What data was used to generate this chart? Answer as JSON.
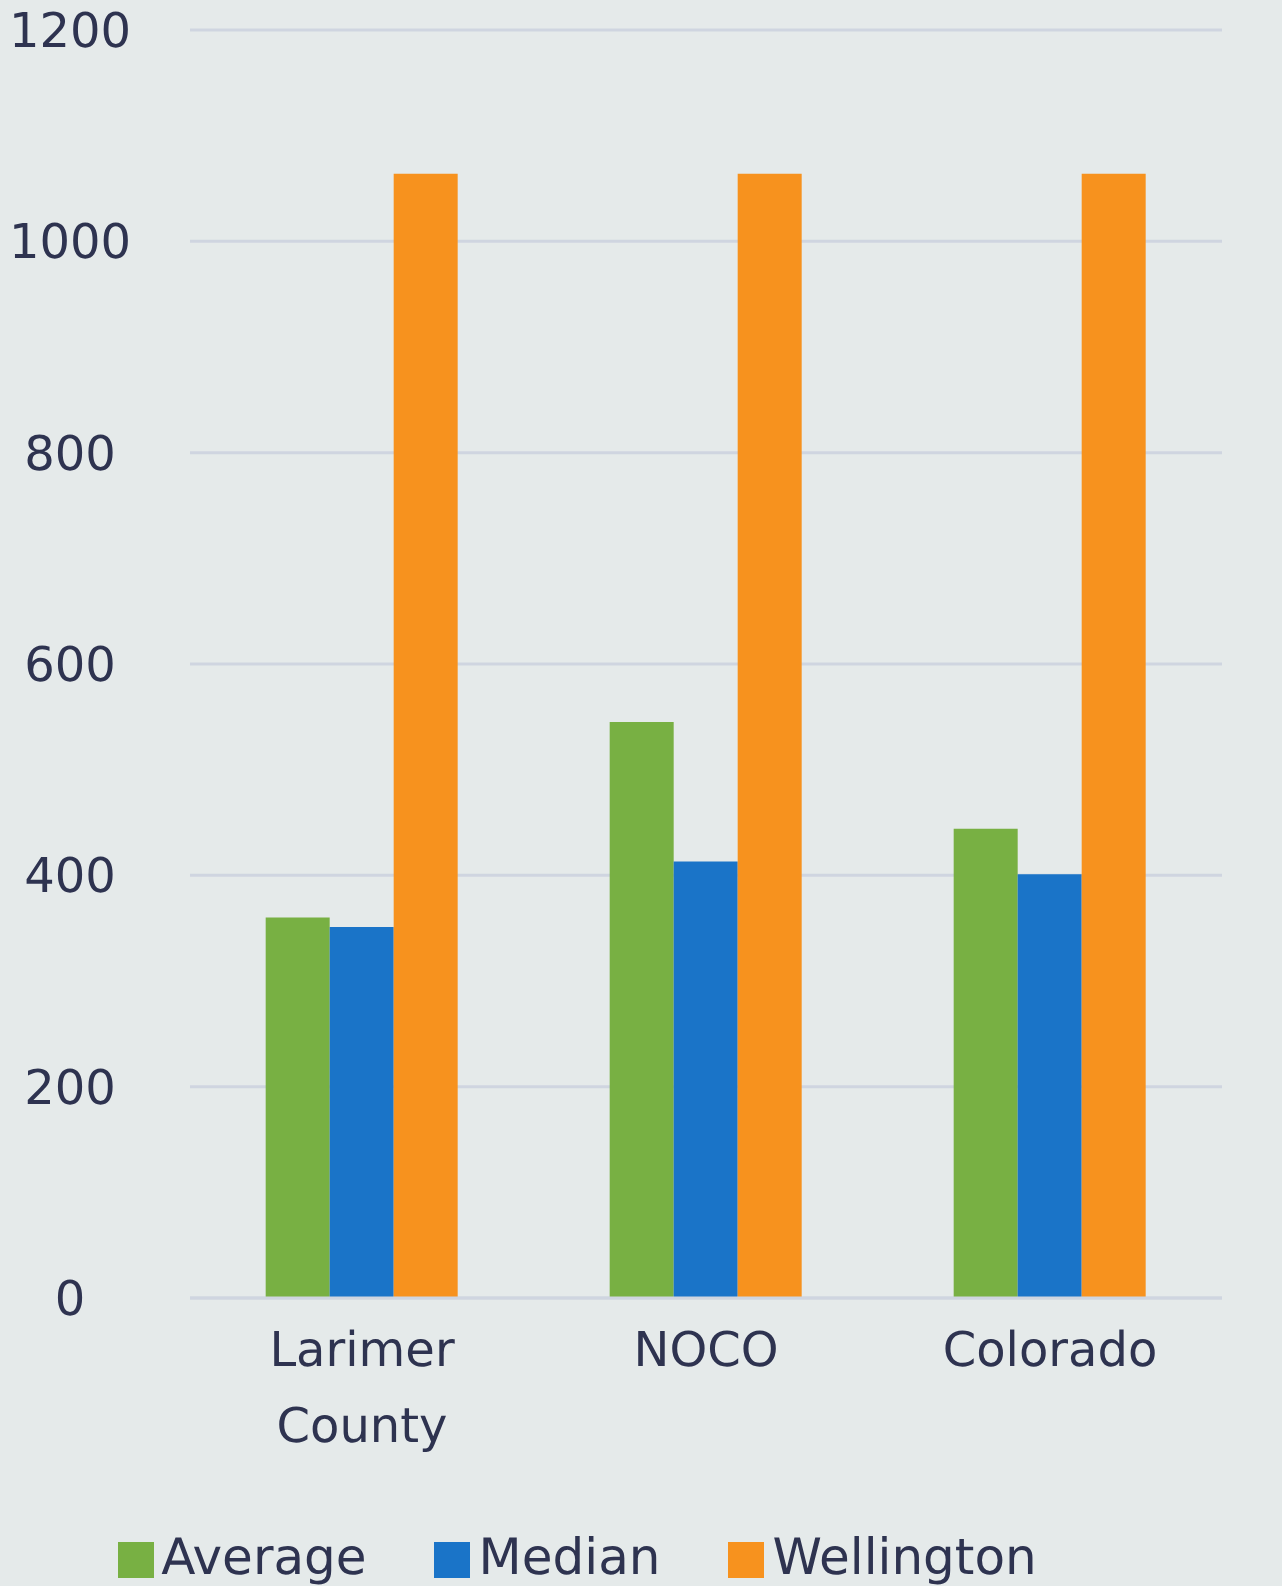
{
  "chart_data": {
    "type": "bar",
    "categories": [
      "Larimer County",
      "NOCO",
      "Colorado"
    ],
    "series": [
      {
        "name": "Average",
        "color": "#78b043",
        "values": [
          360,
          545,
          444
        ]
      },
      {
        "name": "Median",
        "color": "#1a74c8",
        "values": [
          351,
          413,
          401
        ]
      },
      {
        "name": "Wellington",
        "color": "#f7921e",
        "values": [
          1064,
          1064,
          1064
        ]
      }
    ],
    "ylim": [
      0,
      1200
    ],
    "yticks": [
      0,
      200,
      400,
      600,
      800,
      1000,
      1200
    ],
    "grid": "y",
    "legend": "bottom"
  }
}
